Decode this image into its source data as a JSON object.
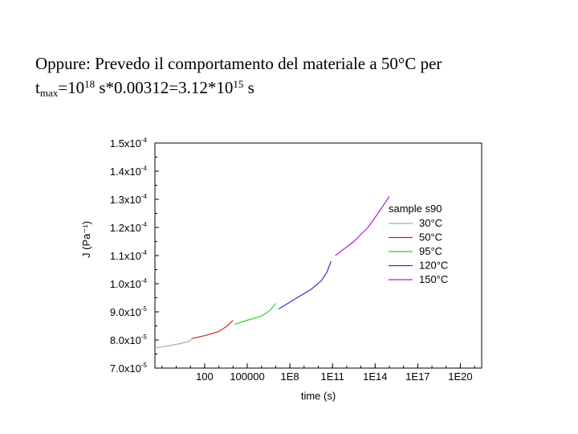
{
  "slide": {
    "line1": "Oppure: Prevedo il comportamento del materiale a 50°C per",
    "line2": {
      "t": "t",
      "t_sub": "max",
      "p1": "=10",
      "p1_sup": "18",
      "p2": " s*0.00312=3.12*10",
      "p2_sup": "15",
      "p3": " s"
    }
  },
  "chart_data": {
    "type": "line",
    "xlabel": "time (s)",
    "ylabel": "J (Pa⁻¹)",
    "xscale": "log",
    "xlim_log10": [
      -1.5,
      21.5
    ],
    "ylim": [
      7e-05,
      0.00015
    ],
    "y_ticks": [
      {
        "value": 7e-05,
        "mant": "7.0x10",
        "exp": "-5"
      },
      {
        "value": 8e-05,
        "mant": "8.0x10",
        "exp": "-5"
      },
      {
        "value": 9e-05,
        "mant": "9.0x10",
        "exp": "-5"
      },
      {
        "value": 0.0001,
        "mant": "1.0x10",
        "exp": "-4"
      },
      {
        "value": 0.00011,
        "mant": "1.1x10",
        "exp": "-4"
      },
      {
        "value": 0.00012,
        "mant": "1.2x10",
        "exp": "-4"
      },
      {
        "value": 0.00013,
        "mant": "1.3x10",
        "exp": "-4"
      },
      {
        "value": 0.00014,
        "mant": "1.4x10",
        "exp": "-4"
      },
      {
        "value": 0.00015,
        "mant": "1.5x10",
        "exp": "-4"
      }
    ],
    "x_ticks": [
      {
        "log10": 2,
        "label": "100"
      },
      {
        "log10": 5,
        "label": "100000"
      },
      {
        "log10": 8,
        "label": "1E8"
      },
      {
        "log10": 11,
        "label": "1E11"
      },
      {
        "log10": 14,
        "label": "1E14"
      },
      {
        "log10": 17,
        "label": "1E17"
      },
      {
        "log10": 20,
        "label": "1E20"
      }
    ],
    "legend": {
      "title": "sample s90",
      "position": "top-right"
    },
    "series": [
      {
        "name": "30°C",
        "color": "#aaaaaa",
        "points": [
          [
            -1.4,
            7.72e-05
          ],
          [
            -0.5,
            7.8e-05
          ],
          [
            0.3,
            7.87e-05
          ],
          [
            0.9,
            7.95e-05
          ],
          [
            1.1,
            8.05e-05
          ]
        ]
      },
      {
        "name": "50°C",
        "color": "#cc2222",
        "points": [
          [
            1.1,
            8.05e-05
          ],
          [
            2.0,
            8.15e-05
          ],
          [
            3.0,
            8.3e-05
          ],
          [
            3.6,
            8.5e-05
          ],
          [
            4.0,
            8.7e-05
          ]
        ]
      },
      {
        "name": "95°C",
        "color": "#33cc33",
        "points": [
          [
            4.1,
            8.55e-05
          ],
          [
            5.0,
            8.7e-05
          ],
          [
            6.0,
            8.85e-05
          ],
          [
            6.6,
            9.05e-05
          ],
          [
            7.0,
            9.3e-05
          ]
        ]
      },
      {
        "name": "120°C",
        "color": "#3333cc",
        "points": [
          [
            7.2,
            9.1e-05
          ],
          [
            8.5,
            9.5e-05
          ],
          [
            9.5,
            9.8e-05
          ],
          [
            10.2,
            0.000101
          ],
          [
            10.6,
            0.000104
          ],
          [
            10.9,
            0.000108
          ]
        ]
      },
      {
        "name": "150°C",
        "color": "#aa22cc",
        "points": [
          [
            11.2,
            0.00011
          ],
          [
            12.5,
            0.000115
          ],
          [
            13.5,
            0.00012
          ],
          [
            14.2,
            0.000125
          ],
          [
            14.6,
            0.000128
          ],
          [
            15.0,
            0.000131
          ]
        ]
      }
    ]
  }
}
